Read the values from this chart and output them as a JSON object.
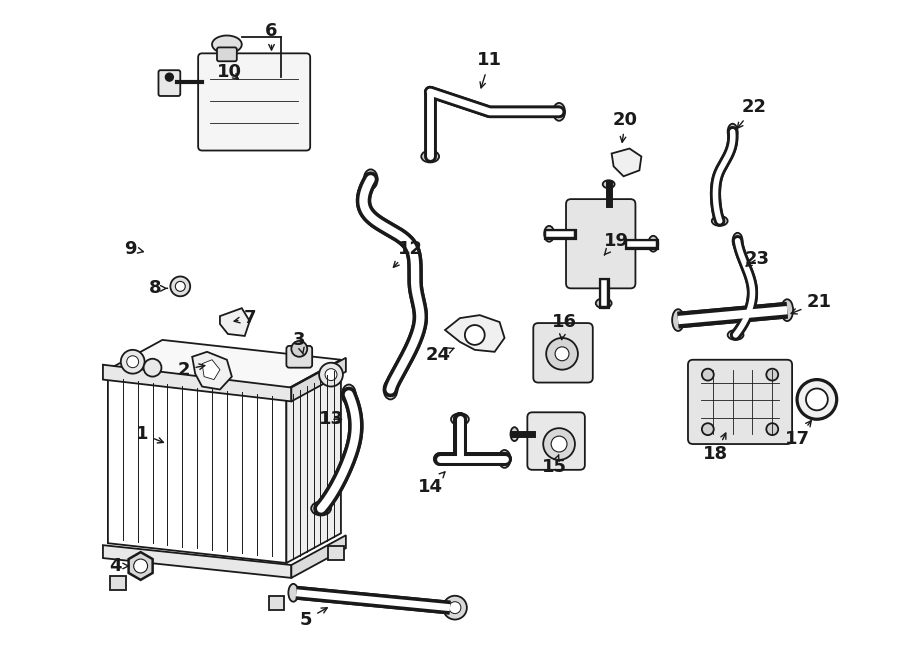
{
  "background_color": "#ffffff",
  "line_color": "#1a1a1a",
  "text_color": "#1a1a1a",
  "fig_width": 9.0,
  "fig_height": 6.61,
  "dpi": 100
}
